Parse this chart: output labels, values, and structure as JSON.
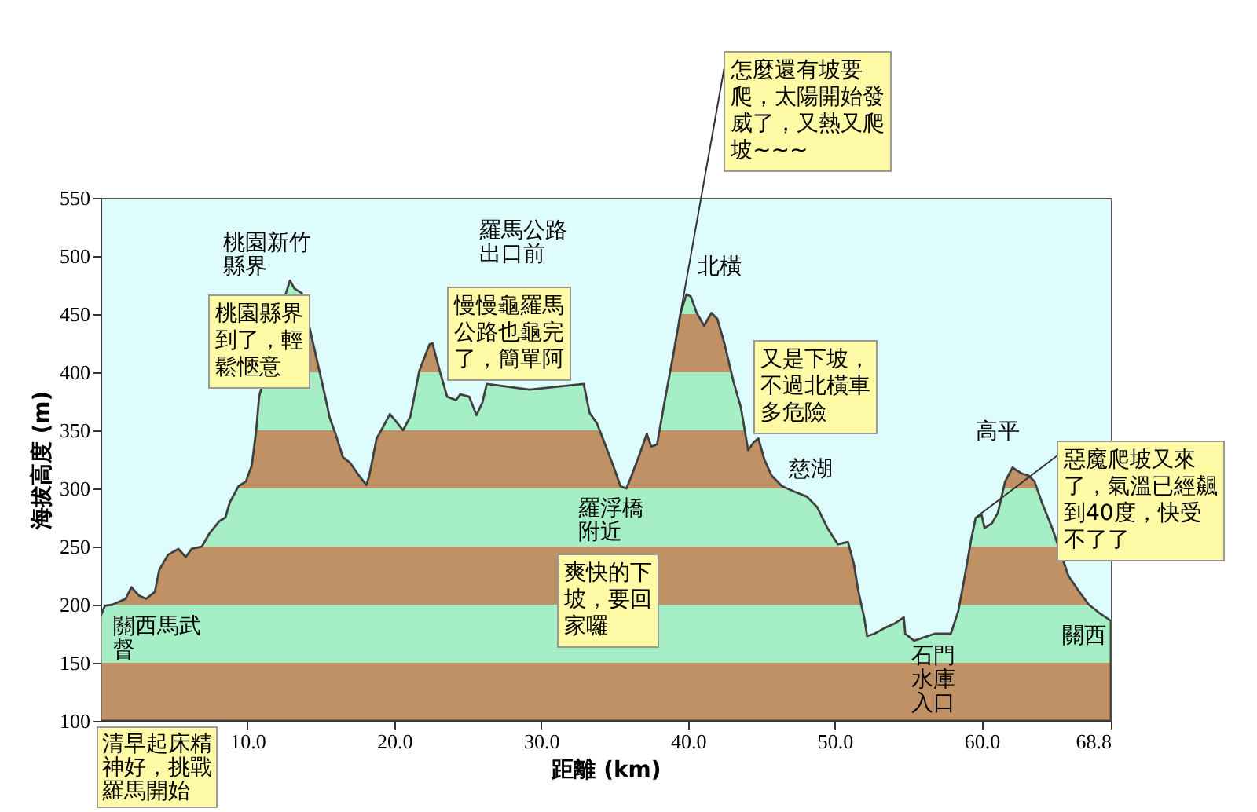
{
  "chart_data": {
    "type": "area",
    "xlabel": "距離 (km)",
    "ylabel": "海拔高度 (m)",
    "color": "#404040",
    "x": [
      0,
      0.3,
      0.8,
      1.7,
      2.1,
      2.6,
      3.1,
      3.7,
      4.0,
      4.6,
      5.3,
      5.8,
      6.2,
      6.9,
      7.4,
      8.1,
      8.5,
      8.8,
      9.4,
      9.9,
      10.3,
      10.6,
      10.8,
      12.6,
      12.9,
      13.2,
      13.7,
      15.3,
      15.6,
      16.0,
      16.5,
      17.0,
      17.6,
      18.1,
      18.3,
      18.8,
      19.2,
      19.7,
      20.1,
      20.6,
      21.1,
      21.7,
      22.4,
      22.6,
      23.1,
      23.6,
      24.2,
      24.5,
      25.1,
      25.6,
      26.0,
      26.3,
      29.2,
      32.9,
      33.3,
      33.8,
      34.2,
      34.9,
      35.4,
      35.8,
      36.1,
      36.7,
      37.2,
      37.5,
      37.9,
      38.4,
      39.0,
      39.5,
      39.9,
      40.2,
      40.6,
      41.1,
      41.6,
      42.0,
      42.5,
      43.1,
      43.6,
      44.1,
      44.5,
      44.8,
      45.2,
      45.7,
      46.4,
      47.3,
      48.1,
      48.8,
      49.5,
      50.2,
      50.9,
      51.3,
      51.6,
      52.0,
      52.2,
      52.7,
      53.4,
      54.1,
      54.7,
      54.8,
      55.4,
      56.8,
      57.9,
      58.4,
      58.8,
      59.3,
      59.6,
      60.0,
      60.2,
      60.7,
      61.1,
      61.6,
      62.1,
      62.7,
      63.2,
      63.6,
      64.1,
      64.8,
      65.9,
      66.6,
      67.3,
      68.0,
      68.8
    ],
    "values": [
      190,
      199,
      200,
      205,
      215,
      208,
      205,
      211,
      230,
      243,
      248,
      241,
      248,
      250,
      261,
      272,
      275,
      288,
      302,
      306,
      320,
      350,
      379,
      467,
      479,
      472,
      468,
      379,
      361,
      347,
      327,
      322,
      311,
      303,
      311,
      343,
      352,
      364,
      358,
      350,
      362,
      401,
      424,
      425,
      401,
      379,
      376,
      381,
      379,
      363,
      374,
      390,
      385,
      390,
      365,
      356,
      343,
      320,
      302,
      300,
      309,
      329,
      347,
      336,
      338,
      374,
      415,
      451,
      467,
      465,
      451,
      440,
      451,
      446,
      424,
      392,
      370,
      333,
      340,
      343,
      325,
      311,
      302,
      297,
      293,
      284,
      266,
      252,
      254,
      235,
      212,
      189,
      173,
      175,
      180,
      184,
      189,
      175,
      169,
      175,
      175,
      194,
      221,
      257,
      275,
      277,
      266,
      270,
      279,
      306,
      318,
      313,
      311,
      306,
      288,
      266,
      225,
      212,
      200,
      193,
      186
    ],
    "xlim": [
      0,
      68.8
    ],
    "xticks": [
      {
        "value": 10,
        "label": "10.0"
      },
      {
        "value": 20,
        "label": "20.0"
      },
      {
        "value": 30,
        "label": "30.0"
      },
      {
        "value": 40,
        "label": "40.0"
      },
      {
        "value": 50,
        "label": "50.0"
      },
      {
        "value": 60,
        "label": "60.0"
      },
      68.8
    ],
    "ylim": [
      100,
      550
    ],
    "yticks": [
      100,
      150,
      200,
      250,
      300,
      350,
      400,
      450,
      500,
      550
    ],
    "bands": [
      {
        "axis": "y",
        "from": 100,
        "to": 150,
        "color": "#bf9164"
      },
      {
        "axis": "y",
        "from": 150,
        "to": 200,
        "color": "#a6efc6"
      },
      {
        "axis": "y",
        "from": 200,
        "to": 250,
        "color": "#bf9164"
      },
      {
        "axis": "y",
        "from": 250,
        "to": 300,
        "color": "#a6efc6"
      },
      {
        "axis": "y",
        "from": 300,
        "to": 350,
        "color": "#bf9164"
      },
      {
        "axis": "y",
        "from": 350,
        "to": 400,
        "color": "#a6efc6"
      },
      {
        "axis": "y",
        "from": 400,
        "to": 450,
        "color": "#bf9164"
      },
      {
        "axis": "y",
        "from": 450,
        "to": 500,
        "color": "#a6efc6"
      }
    ],
    "annotations": [
      "關西馬武督",
      "桃園新竹縣界",
      "羅馬公路出口前",
      "北橫",
      "羅浮橋附近",
      "慈湖",
      "石門水庫入口",
      "高平",
      "關西",
      "清早起床精神好，挑戰羅馬開始",
      "桃園縣界到了，輕鬆愜意",
      "慢慢龜羅馬公路也龜完了，簡單阿",
      {
        "text": "怎麼還有坡要爬，太陽開始發威了，又熱又爬坡~~~",
        "x": 39.4,
        "y": 444
      },
      "又是下坡，不過北橫車多危險",
      "爽快的下坡，要回家囉",
      {
        "text": "惡魔爬坡又來了，氣溫已經飆到40度，快受不了了",
        "x": 59.7,
        "y": 276
      }
    ]
  }
}
